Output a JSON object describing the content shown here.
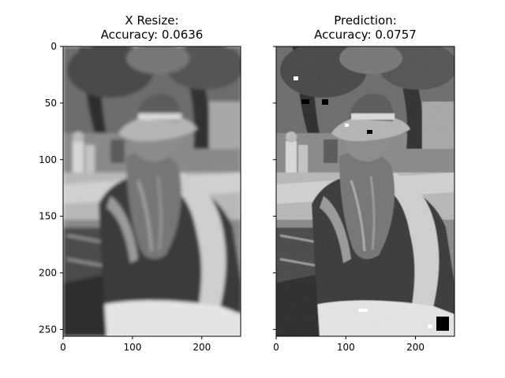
{
  "figure": {
    "panels": [
      {
        "title_line1": "X Resize:",
        "title_line2": "Accuracy: 0.0636",
        "x_ticks": [
          "0",
          "100",
          "200"
        ],
        "y_ticks": [
          "0",
          "50",
          "100",
          "150",
          "200",
          "250"
        ],
        "image": "grayscale photo of a bearded man in a hat and jacket, outdoors under trees (blurred)"
      },
      {
        "title_line1": "Prediction:",
        "title_line2": "Accuracy: 0.0757",
        "x_ticks": [
          "0",
          "100",
          "200"
        ],
        "y_ticks": [
          "0",
          "50",
          "100",
          "150",
          "200",
          "250"
        ],
        "image": "grayscale photo of a bearded man in a hat and jacket, outdoors under trees (sharpened, with small black/white artifacts)"
      }
    ]
  }
}
